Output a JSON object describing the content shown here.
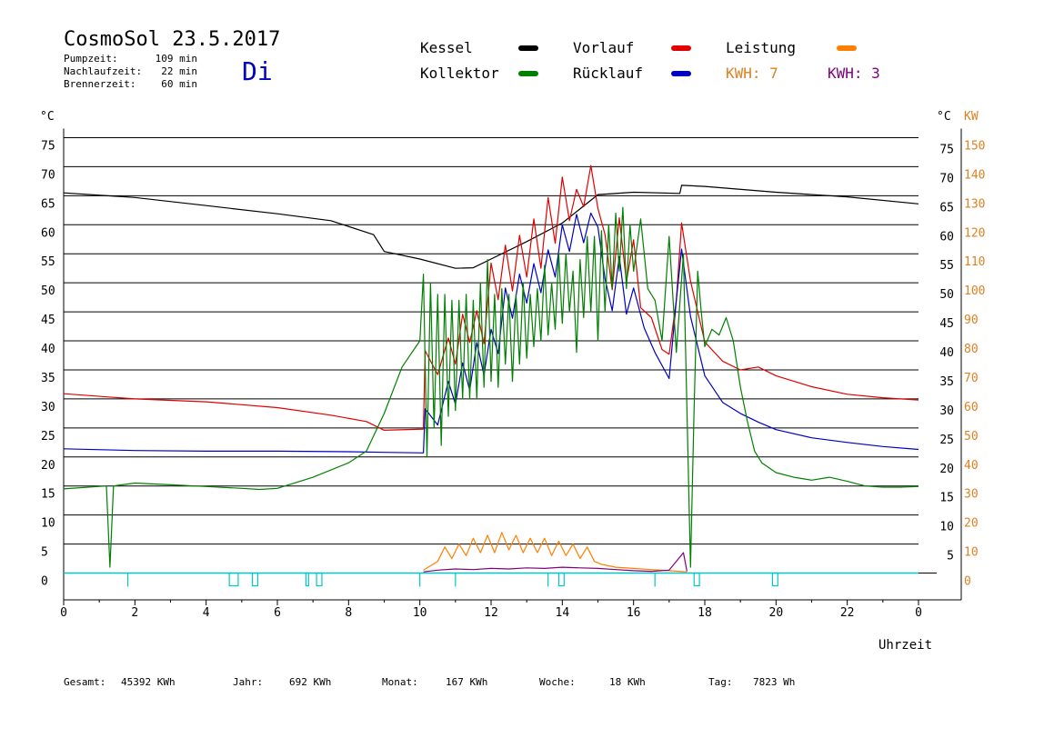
{
  "header": {
    "title": "CosmoSol 23.5.2017",
    "day": "Di",
    "times": [
      {
        "label": "Pumpzeit:",
        "value": "109 min"
      },
      {
        "label": "Nachlaufzeit:",
        "value": "22 min"
      },
      {
        "label": "Brennerzeit:",
        "value": "60 min"
      }
    ]
  },
  "legend": {
    "items": [
      {
        "label": "Kessel",
        "color": "#000000"
      },
      {
        "label": "Vorlauf",
        "color": "#e00000"
      },
      {
        "label": "Leistung",
        "color": "#ff8000"
      },
      {
        "label": "Kollektor",
        "color": "#008000"
      },
      {
        "label": "Rücklauf",
        "color": "#0000c0"
      }
    ],
    "kwh_orange": "KWH: 7",
    "kwh_purple": "KWH: 3"
  },
  "axes": {
    "left_unit": "°C",
    "right_unit": "°C",
    "right_kw_unit": "KW",
    "xlabel": "Uhrzeit"
  },
  "footer": [
    {
      "label": "Gesamt:",
      "value": "45392 KWh"
    },
    {
      "label": "Jahr:",
      "value": "692 KWh"
    },
    {
      "label": "Monat:",
      "value": "167 KWh"
    },
    {
      "label": "Woche:",
      "value": "18 KWh"
    },
    {
      "label": "Tag:",
      "value": "7823 Wh"
    }
  ],
  "colors": {
    "kessel": "#000000",
    "vorlauf": "#e00000",
    "ruecklauf": "#0000c0",
    "kollektor": "#008000",
    "leistung": "#ff8000",
    "kwh_purple": "#800080",
    "pump": "#00c8c8",
    "day": "#0000c0"
  },
  "chart_data": {
    "type": "line",
    "xlim": [
      0,
      24
    ],
    "ylim": [
      0,
      75
    ],
    "y2lim": [
      0,
      150
    ],
    "x_ticks": [
      "0",
      "2",
      "4",
      "6",
      "8",
      "10",
      "12",
      "14",
      "16",
      "18",
      "20",
      "22",
      "0"
    ],
    "y_ticks": [
      "0",
      "5",
      "10",
      "15",
      "20",
      "25",
      "30",
      "35",
      "40",
      "45",
      "50",
      "55",
      "60",
      "65",
      "70",
      "75"
    ],
    "y_ticks_right": [
      "",
      "5",
      "10",
      "15",
      "20",
      "25",
      "30",
      "35",
      "40",
      "45",
      "50",
      "55",
      "60",
      "65",
      "70",
      "75"
    ],
    "y2_ticks": [
      "0",
      "10",
      "20",
      "30",
      "40",
      "50",
      "60",
      "70",
      "80",
      "90",
      "100",
      "110",
      "120",
      "130",
      "140",
      "150"
    ],
    "series": [
      {
        "name": "Kessel",
        "key": "kessel",
        "x": [
          0,
          2,
          4,
          6,
          7.5,
          8.7,
          9,
          10,
          11,
          11.5,
          12,
          13,
          14,
          15,
          16,
          17.3,
          17.35,
          18,
          20,
          22,
          24
        ],
        "y": [
          65.5,
          64.7,
          63.3,
          61.9,
          60.7,
          58.3,
          55.4,
          54.1,
          52.5,
          52.6,
          54.1,
          57.1,
          60.3,
          65.2,
          65.6,
          65.4,
          66.8,
          66.6,
          65.6,
          64.8,
          63.6
        ]
      },
      {
        "name": "Vorlauf",
        "key": "vorlauf",
        "x": [
          0,
          2,
          4,
          6,
          7.5,
          8.5,
          9,
          10.1,
          10.15,
          10.5,
          10.8,
          11,
          11.2,
          11.4,
          11.6,
          11.8,
          12,
          12.2,
          12.4,
          12.6,
          12.8,
          13,
          13.2,
          13.4,
          13.6,
          13.8,
          14,
          14.2,
          14.4,
          14.6,
          14.8,
          15,
          15.2,
          15.4,
          15.6,
          15.8,
          16,
          16.2,
          16.5,
          16.8,
          17,
          17.2,
          17.35,
          17.6,
          18,
          18.5,
          19,
          19.5,
          20,
          21,
          22,
          23,
          24
        ],
        "y": [
          30.9,
          30.0,
          29.5,
          28.5,
          27.2,
          26.1,
          24.6,
          24.8,
          38.3,
          34.2,
          40.5,
          36.0,
          44.6,
          39.7,
          45.2,
          39.5,
          53.4,
          47.1,
          56.5,
          48.6,
          58.2,
          51.0,
          61.0,
          52.5,
          64.7,
          56.8,
          68.2,
          60.7,
          66.1,
          63.1,
          70.2,
          62.8,
          58.3,
          48.8,
          61.2,
          50.2,
          57.4,
          45.7,
          44.0,
          38.5,
          37.7,
          47.0,
          60.3,
          50.3,
          39.8,
          36.5,
          35.0,
          35.5,
          34.0,
          32.1,
          30.8,
          30.2,
          29.8
        ]
      },
      {
        "name": "Rücklauf",
        "key": "ruecklauf",
        "x": [
          0,
          2,
          4,
          6,
          8,
          9,
          10.1,
          10.15,
          10.5,
          10.8,
          11,
          11.2,
          11.4,
          11.6,
          11.8,
          12,
          12.2,
          12.4,
          12.6,
          12.8,
          13,
          13.2,
          13.4,
          13.6,
          13.8,
          14,
          14.2,
          14.4,
          14.6,
          14.8,
          15,
          15.2,
          15.4,
          15.6,
          15.8,
          16,
          16.3,
          16.6,
          17,
          17.2,
          17.35,
          17.6,
          18,
          18.5,
          19,
          19.5,
          20,
          21,
          22,
          23,
          24
        ],
        "y": [
          21.4,
          21.1,
          21.0,
          21.0,
          20.9,
          20.8,
          20.7,
          28.3,
          25.5,
          33.0,
          29.1,
          36.2,
          31.5,
          39.7,
          34.1,
          42.0,
          37.8,
          49.1,
          43.9,
          51.5,
          46.5,
          53.3,
          48.3,
          55.7,
          51.0,
          60.0,
          55.4,
          61.8,
          56.9,
          62.0,
          59.6,
          50.7,
          45.2,
          54.5,
          44.6,
          49.1,
          42.2,
          38.0,
          33.5,
          47.0,
          55.8,
          44.2,
          34.0,
          29.4,
          27.5,
          26.0,
          24.7,
          23.3,
          22.5,
          21.8,
          21.3
        ]
      },
      {
        "name": "Kollektor",
        "key": "kollektor",
        "x": [
          0,
          1.2,
          1.3,
          1.4,
          1.5,
          2,
          3,
          4,
          5,
          5.5,
          6,
          7,
          8,
          8.5,
          9,
          9.5,
          10,
          10.1,
          10.2,
          10.3,
          10.4,
          10.5,
          10.6,
          10.7,
          10.8,
          10.9,
          11,
          11.1,
          11.2,
          11.3,
          11.4,
          11.5,
          11.6,
          11.7,
          11.8,
          11.9,
          12,
          12.1,
          12.2,
          12.3,
          12.4,
          12.5,
          12.6,
          12.7,
          12.8,
          12.9,
          13,
          13.1,
          13.2,
          13.3,
          13.4,
          13.5,
          13.6,
          13.7,
          13.8,
          13.9,
          14,
          14.1,
          14.2,
          14.3,
          14.4,
          14.5,
          14.6,
          14.7,
          14.8,
          14.9,
          15,
          15.1,
          15.2,
          15.3,
          15.4,
          15.5,
          15.6,
          15.7,
          15.8,
          15.9,
          16,
          16.2,
          16.4,
          16.6,
          16.8,
          17,
          17.2,
          17.4,
          17.6,
          17.7,
          17.8,
          17.9,
          18,
          18.2,
          18.4,
          18.6,
          18.8,
          19,
          19.2,
          19.4,
          19.6,
          20,
          20.5,
          21,
          21.5,
          22,
          22.5,
          23,
          23.5,
          24
        ],
        "y": [
          14.5,
          15.0,
          1.0,
          15.0,
          15.1,
          15.5,
          15.2,
          14.9,
          14.6,
          14.4,
          14.6,
          16.5,
          19.0,
          21.0,
          27.5,
          35.5,
          40.0,
          51.5,
          20.0,
          50.0,
          25.0,
          48.0,
          22.0,
          48.0,
          27.0,
          47.0,
          28.0,
          47.0,
          30.0,
          48.0,
          30.0,
          47.0,
          30.0,
          50.0,
          32.0,
          54.0,
          33.0,
          48.0,
          32.0,
          49.0,
          36.0,
          48.0,
          33.0,
          48.0,
          36.0,
          50.0,
          37.0,
          48.0,
          39.0,
          49.0,
          40.0,
          53.0,
          41.0,
          50.0,
          42.0,
          55.0,
          43.0,
          55.0,
          45.0,
          52.0,
          38.0,
          54.0,
          44.0,
          58.0,
          45.0,
          58.0,
          40.0,
          59.0,
          45.0,
          60.0,
          49.0,
          62.0,
          52.0,
          63.0,
          49.0,
          60.0,
          52.0,
          61.0,
          49.0,
          47.0,
          40.0,
          58.0,
          38.0,
          55.0,
          1.0,
          28.0,
          52.0,
          45.0,
          39.0,
          42.0,
          41.0,
          44.0,
          40.0,
          32.0,
          26.0,
          21.0,
          19.0,
          17.3,
          16.5,
          16.0,
          16.5,
          15.8,
          15.0,
          14.8,
          14.8,
          14.9
        ]
      },
      {
        "name": "Leistung",
        "key": "leistung",
        "x": [
          10.1,
          10.5,
          10.7,
          10.9,
          11.1,
          11.3,
          11.5,
          11.7,
          11.9,
          12.1,
          12.3,
          12.5,
          12.7,
          12.9,
          13.1,
          13.3,
          13.5,
          13.7,
          13.9,
          14.1,
          14.3,
          14.5,
          14.7,
          14.9,
          15.1,
          15.5,
          16,
          16.5,
          17,
          17.5
        ],
        "y": [
          0.5,
          2,
          4.5,
          2.5,
          5,
          3,
          6,
          3.5,
          6.5,
          3.5,
          7,
          4,
          6.5,
          3.5,
          6,
          3.5,
          6,
          3,
          5.5,
          3,
          5,
          2.5,
          4.5,
          2,
          1.5,
          1,
          0.8,
          0.6,
          0.4,
          0.2
        ]
      },
      {
        "name": "KWH 3",
        "key": "kwh_purple",
        "x": [
          10.1,
          10.5,
          11,
          11.5,
          12,
          12.5,
          13,
          13.5,
          14,
          14.5,
          15,
          15.5,
          16,
          16.5,
          17,
          17.4,
          17.5
        ],
        "y": [
          0.2,
          0.5,
          0.7,
          0.6,
          0.8,
          0.7,
          0.9,
          0.8,
          1.0,
          0.9,
          0.8,
          0.6,
          0.4,
          0.3,
          0.5,
          3.5,
          0.3
        ]
      }
    ],
    "pump": {
      "name": "Pumpe",
      "ticks": [
        1.8,
        10,
        11,
        13.6,
        16.6
      ],
      "boxes": [
        [
          4.65,
          4.9
        ],
        [
          5.3,
          5.45
        ],
        [
          6.8,
          6.85
        ],
        [
          7.1,
          7.25
        ],
        [
          13.9,
          14.05
        ],
        [
          17.7,
          17.85
        ],
        [
          19.9,
          20.05
        ]
      ]
    }
  }
}
